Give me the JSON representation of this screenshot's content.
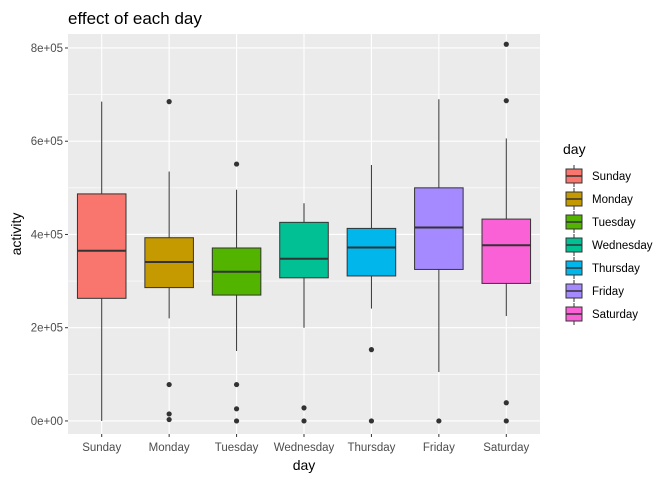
{
  "chart_data": {
    "type": "boxplot",
    "title": "effect of each day",
    "xlabel": "day",
    "ylabel": "activity",
    "ylim": [
      -28000,
      830000
    ],
    "yticks": [
      0,
      200000,
      400000,
      600000,
      800000
    ],
    "ytick_labels": [
      "0e+00",
      "2e+05",
      "4e+05",
      "6e+05",
      "8e+05"
    ],
    "grid": true,
    "legend": {
      "title": "day",
      "position": "right"
    },
    "categories": [
      "Sunday",
      "Monday",
      "Tuesday",
      "Wednesday",
      "Thursday",
      "Friday",
      "Saturday"
    ],
    "colors": [
      "#F8766D",
      "#C49A00",
      "#53B400",
      "#00C094",
      "#00B6EB",
      "#A58AFF",
      "#FB61D7"
    ],
    "boxes": [
      {
        "name": "Sunday",
        "whisker_low": 0,
        "q1": 263000,
        "median": 365000,
        "q3": 487000,
        "whisker_high": 685000,
        "outliers": []
      },
      {
        "name": "Monday",
        "whisker_low": 220000,
        "q1": 286000,
        "median": 341000,
        "q3": 393000,
        "whisker_high": 535000,
        "outliers": [
          685000,
          78000,
          15000,
          3000
        ]
      },
      {
        "name": "Tuesday",
        "whisker_low": 150000,
        "q1": 270000,
        "median": 320000,
        "q3": 371000,
        "whisker_high": 496000,
        "outliers": [
          551000,
          78000,
          26000,
          0
        ]
      },
      {
        "name": "Wednesday",
        "whisker_low": 200000,
        "q1": 307000,
        "median": 348000,
        "q3": 426000,
        "whisker_high": 467000,
        "outliers": [
          28000,
          0
        ]
      },
      {
        "name": "Thursday",
        "whisker_low": 241000,
        "q1": 311000,
        "median": 372000,
        "q3": 413000,
        "whisker_high": 549000,
        "outliers": [
          153000,
          0
        ]
      },
      {
        "name": "Friday",
        "whisker_low": 105000,
        "q1": 325000,
        "median": 415000,
        "q3": 500000,
        "whisker_high": 690000,
        "outliers": [
          0
        ]
      },
      {
        "name": "Saturday",
        "whisker_low": 225000,
        "q1": 295000,
        "median": 377000,
        "q3": 433000,
        "whisker_high": 606000,
        "outliers": [
          808000,
          687000,
          39000,
          0
        ]
      }
    ]
  }
}
